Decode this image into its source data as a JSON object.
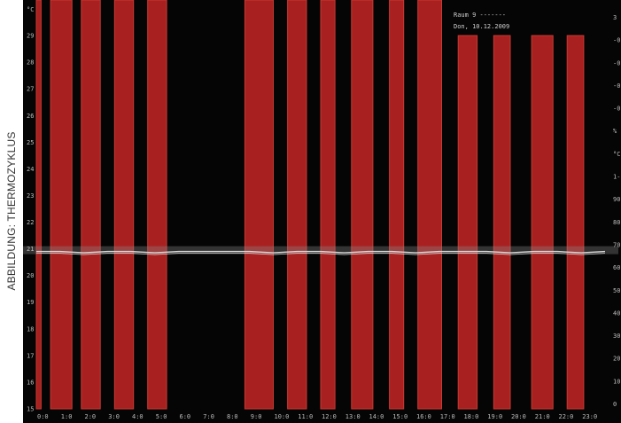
{
  "credit": "ABBILDUNG: THERMOZYKLUS",
  "info": {
    "room": "Raum  9 -------",
    "date": "Don, 10.12.2009"
  },
  "colors": {
    "background": "#050505",
    "bar": "#a8201f",
    "bar_edge": "#c83a34",
    "line": "#d8d8d8"
  },
  "chart_data": {
    "type": "bar",
    "title": "",
    "xlabel": "",
    "ylabel": "°C",
    "ylim": [
      15,
      30
    ],
    "x_ticks": [
      "0:0",
      "1:0",
      "2:0",
      "3:0",
      "4:0",
      "5:0",
      "6:0",
      "7:0",
      "8:0",
      "9:0",
      "10:0",
      "11:0",
      "12:0",
      "13:0",
      "14:0",
      "15:0",
      "16:0",
      "17:0",
      "18:0",
      "19:0",
      "20:0",
      "21:0",
      "22:0",
      "23:0"
    ],
    "y_ticks": [
      15,
      16,
      17,
      18,
      19,
      20,
      21,
      22,
      23,
      24,
      25,
      26,
      27,
      28,
      29
    ],
    "right_axis_labels": [
      "3",
      "-0",
      "-0",
      "-0",
      "-0",
      "%",
      "°C",
      "1-",
      "90",
      "80",
      "70",
      "60",
      "50",
      "40",
      "30",
      "20",
      "10",
      "0"
    ],
    "bars": [
      {
        "start": 0.0,
        "end": 0.2,
        "value": 30
      },
      {
        "start": 0.6,
        "end": 1.5,
        "value": 30
      },
      {
        "start": 1.9,
        "end": 2.7,
        "value": 30
      },
      {
        "start": 3.3,
        "end": 4.1,
        "value": 30
      },
      {
        "start": 4.7,
        "end": 5.5,
        "value": 30
      },
      {
        "start": 8.8,
        "end": 10.0,
        "value": 30
      },
      {
        "start": 10.6,
        "end": 11.4,
        "value": 30
      },
      {
        "start": 12.0,
        "end": 12.6,
        "value": 30
      },
      {
        "start": 13.3,
        "end": 14.2,
        "value": 30
      },
      {
        "start": 14.9,
        "end": 15.5,
        "value": 30
      },
      {
        "start": 16.1,
        "end": 17.1,
        "value": 30
      },
      {
        "start": 17.8,
        "end": 18.6,
        "value": 29
      },
      {
        "start": 19.3,
        "end": 20.0,
        "value": 29
      },
      {
        "start": 20.9,
        "end": 21.8,
        "value": 29
      },
      {
        "start": 22.4,
        "end": 23.1,
        "value": 29
      }
    ],
    "line": {
      "x": [
        0,
        1,
        2,
        3,
        4,
        5,
        6,
        7,
        8,
        9,
        10,
        11,
        12,
        13,
        14,
        15,
        16,
        17,
        18,
        19,
        20,
        21,
        22,
        23,
        24
      ],
      "y": [
        20.9,
        20.9,
        20.85,
        20.9,
        20.9,
        20.85,
        20.9,
        20.9,
        20.9,
        20.9,
        20.85,
        20.9,
        20.9,
        20.85,
        20.9,
        20.9,
        20.85,
        20.9,
        20.9,
        20.9,
        20.85,
        20.9,
        20.9,
        20.85,
        20.9
      ]
    }
  }
}
